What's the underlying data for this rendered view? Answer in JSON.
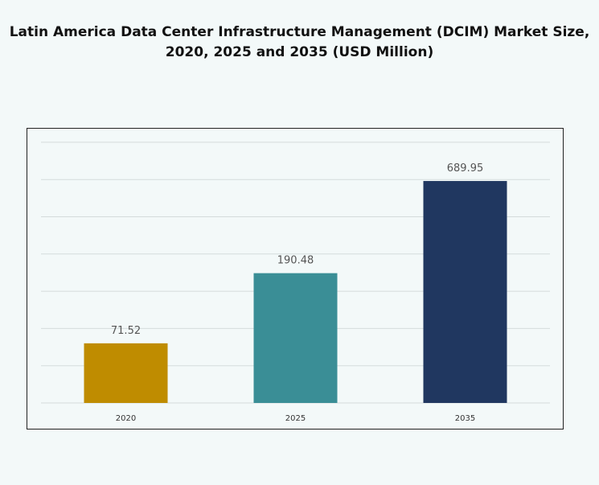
{
  "chart_data": {
    "type": "bar",
    "title_line1": "Latin America Data Center Infrastructure  Management (DCIM) Market Size,",
    "title_line2": "2020, 2025 and 2035 (USD Million)",
    "categories": [
      "2020",
      "2025",
      "2035"
    ],
    "values": [
      71.52,
      190.48,
      689.95
    ],
    "value_labels": [
      "71.52",
      "190.48",
      "689.95"
    ],
    "colors": [
      "#bf8c00",
      "#3a8e96",
      "#203760"
    ],
    "grid": true,
    "legend": "none"
  }
}
